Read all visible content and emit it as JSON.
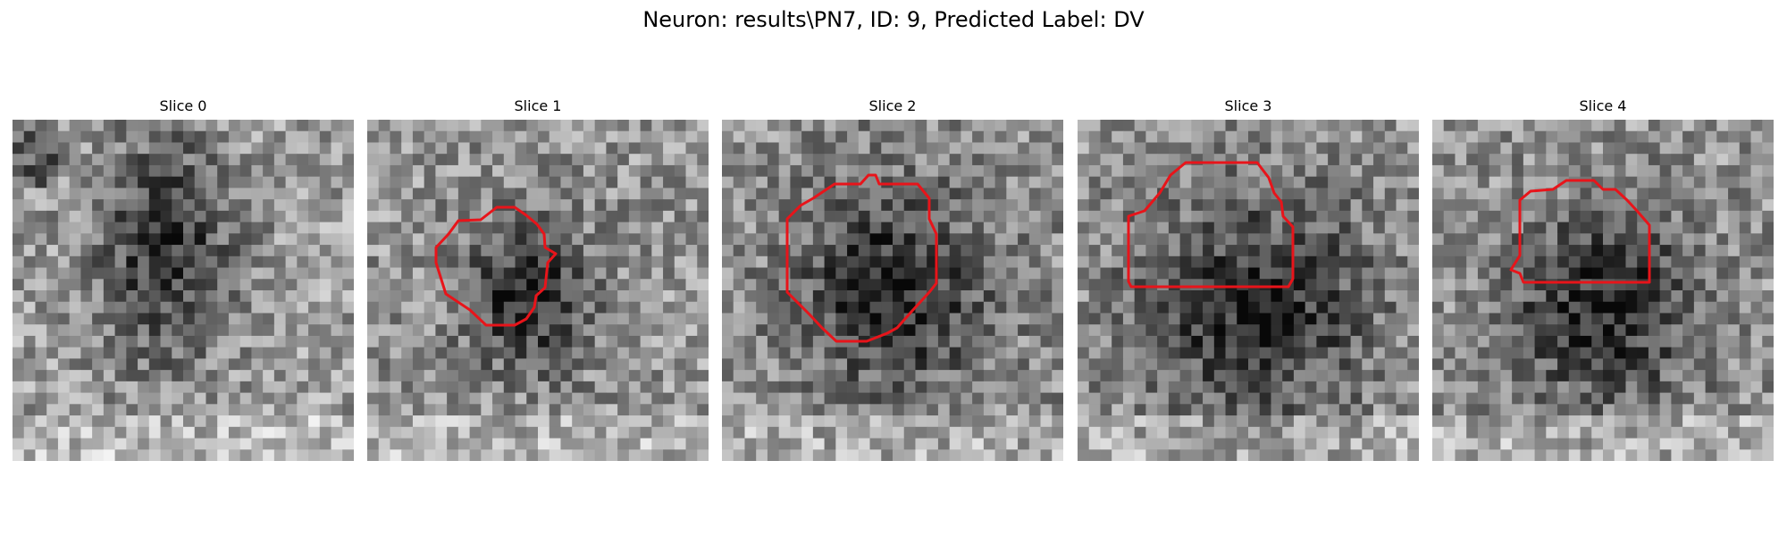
{
  "figure_title": "Neuron: results\\PN7, ID: 9, Predicted Label: DV",
  "contour_color": "#e8141a",
  "panels": [
    {
      "title": "Slice 0",
      "has_contour": false,
      "dark_blob": [
        0.45,
        0.38,
        0.22,
        0.35
      ],
      "base_brightness": 0.62
    },
    {
      "title": "Slice 1",
      "has_contour": true,
      "dark_blob": [
        0.47,
        0.52,
        0.2,
        0.22
      ],
      "base_brightness": 0.58
    },
    {
      "title": "Slice 2",
      "has_contour": true,
      "dark_blob": [
        0.5,
        0.5,
        0.28,
        0.3
      ],
      "base_brightness": 0.56
    },
    {
      "title": "Slice 3",
      "has_contour": true,
      "dark_blob": [
        0.52,
        0.55,
        0.36,
        0.34
      ],
      "base_brightness": 0.58
    },
    {
      "title": "Slice 4",
      "has_contour": true,
      "dark_blob": [
        0.5,
        0.55,
        0.3,
        0.3
      ],
      "base_brightness": 0.58
    }
  ]
}
